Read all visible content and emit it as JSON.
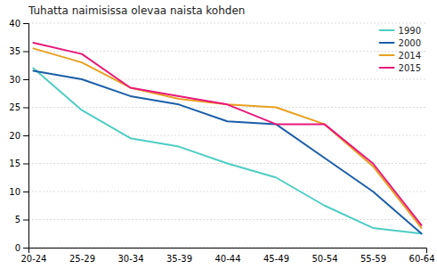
{
  "chart_data": {
    "type": "line",
    "title": "Tuhatta naimisissa olevaa naista kohden",
    "categories": [
      "20-24",
      "25-29",
      "30-34",
      "35-39",
      "40-44",
      "45-49",
      "50-54",
      "55-59",
      "60-64"
    ],
    "series": [
      {
        "name": "1990",
        "color": "#4ecdc4",
        "values": [
          32.0,
          24.5,
          19.5,
          18.0,
          15.0,
          12.5,
          7.5,
          3.5,
          2.5
        ]
      },
      {
        "name": "2000",
        "color": "#1a5ea8",
        "values": [
          31.5,
          30.0,
          27.0,
          25.5,
          22.5,
          22.0,
          16.0,
          10.0,
          2.5
        ]
      },
      {
        "name": "2014",
        "color": "#e8a020",
        "values": [
          35.5,
          33.0,
          28.5,
          26.5,
          25.5,
          25.0,
          22.0,
          14.5,
          3.5
        ]
      },
      {
        "name": "2015",
        "color": "#e8197a",
        "values": [
          36.5,
          34.5,
          28.5,
          27.0,
          25.5,
          22.0,
          22.0,
          15.0,
          4.0
        ]
      }
    ],
    "ylim": [
      0,
      40
    ],
    "yticks": [
      0,
      5,
      10,
      15,
      20,
      25,
      30,
      35,
      40
    ],
    "grid": true,
    "legend": "upper right"
  }
}
